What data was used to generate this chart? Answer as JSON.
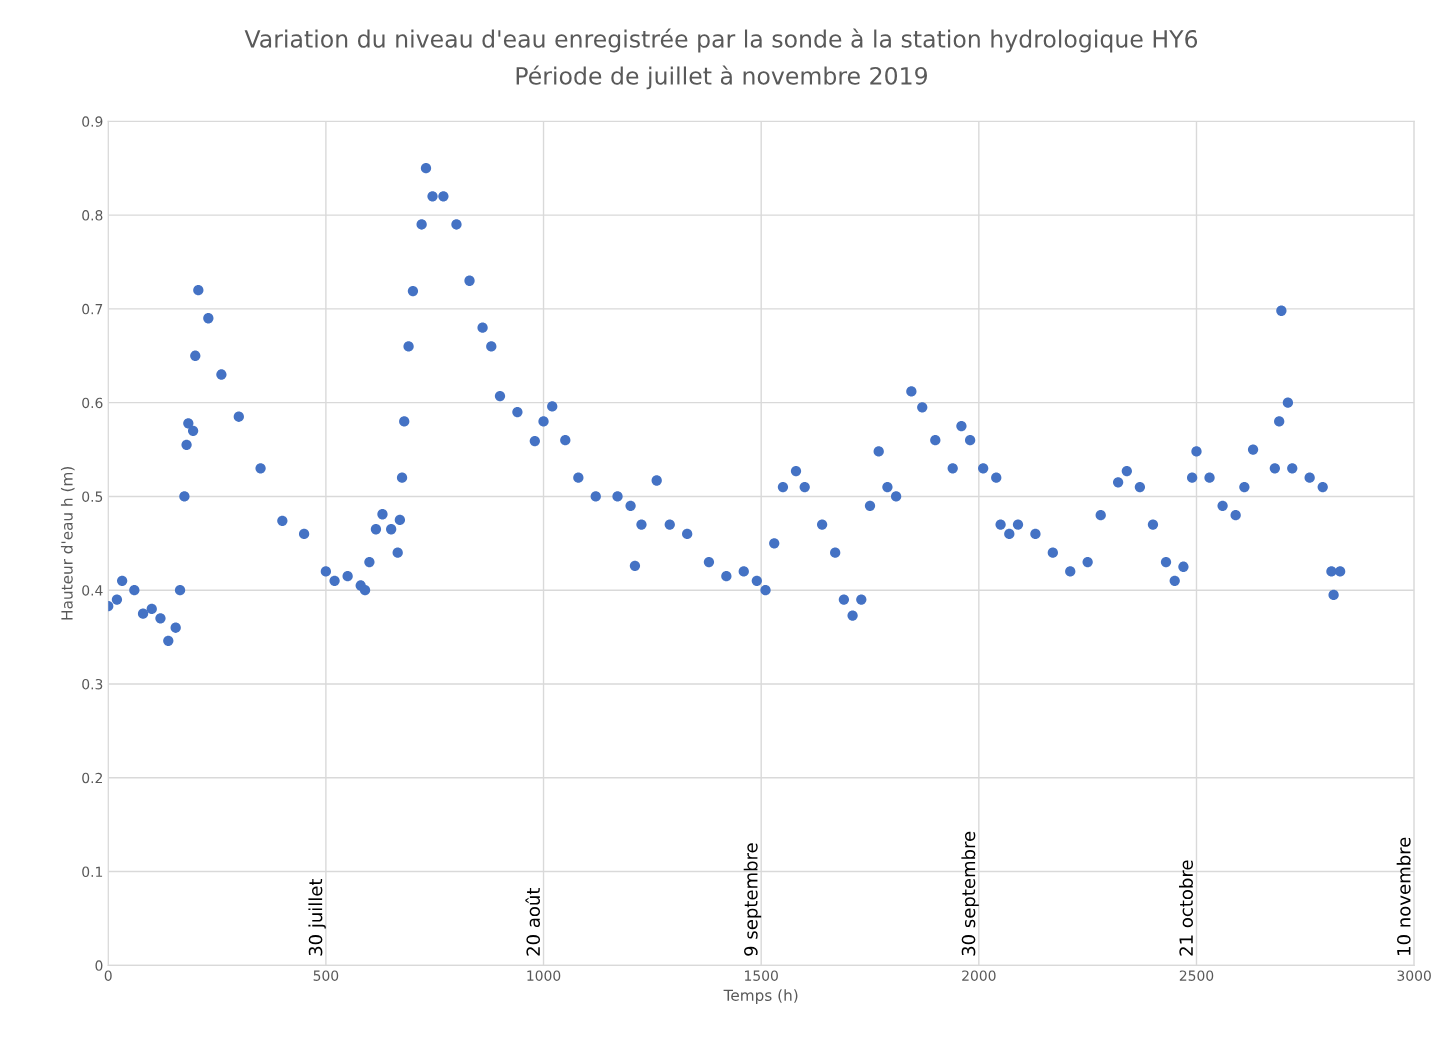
{
  "chart_data": {
    "type": "scatter",
    "title": "Variation du niveau d'eau enregistrée par la sonde à la station hydrologique HY6",
    "subtitle": "Période de juillet à novembre 2019",
    "xlabel": "Temps (h)",
    "ylabel": "Hauteur d'eau h (m)",
    "x": [
      0,
      20,
      32,
      60,
      80,
      100,
      120,
      138,
      155,
      165,
      175,
      180,
      184,
      195,
      200,
      207,
      230,
      260,
      300,
      350,
      400,
      450,
      500,
      520,
      550,
      580,
      590,
      600,
      615,
      630,
      650,
      665,
      670,
      675,
      680,
      690,
      700,
      720,
      730,
      745,
      770,
      800,
      830,
      860,
      880,
      900,
      940,
      980,
      1000,
      1020,
      1050,
      1080,
      1120,
      1170,
      1200,
      1210,
      1225,
      1260,
      1290,
      1330,
      1380,
      1420,
      1460,
      1490,
      1510,
      1530,
      1550,
      1580,
      1600,
      1640,
      1670,
      1690,
      1710,
      1730,
      1750,
      1770,
      1790,
      1810,
      1845,
      1870,
      1900,
      1940,
      1960,
      1980,
      2010,
      2040,
      2050,
      2070,
      2090,
      2130,
      2170,
      2210,
      2250,
      2280,
      2320,
      2340,
      2370,
      2400,
      2430,
      2450,
      2470,
      2490,
      2500,
      2530,
      2560,
      2590,
      2610,
      2630,
      2680,
      2690,
      2695,
      2710,
      2720,
      2760,
      2790,
      2810,
      2815,
      2830
    ],
    "series": [
      {
        "color": "#4472c4",
        "values": [
          0.383,
          0.39,
          0.41,
          0.4,
          0.375,
          0.38,
          0.37,
          0.346,
          0.36,
          0.4,
          0.5,
          0.555,
          0.578,
          0.57,
          0.65,
          0.72,
          0.69,
          0.63,
          0.585,
          0.53,
          0.474,
          0.46,
          0.42,
          0.41,
          0.415,
          0.405,
          0.4,
          0.43,
          0.465,
          0.481,
          0.465,
          0.44,
          0.475,
          0.52,
          0.58,
          0.66,
          0.719,
          0.79,
          0.85,
          0.82,
          0.82,
          0.79,
          0.73,
          0.68,
          0.66,
          0.607,
          0.59,
          0.559,
          0.58,
          0.596,
          0.56,
          0.52,
          0.5,
          0.5,
          0.49,
          0.426,
          0.47,
          0.517,
          0.47,
          0.46,
          0.43,
          0.415,
          0.42,
          0.41,
          0.4,
          0.45,
          0.51,
          0.527,
          0.51,
          0.47,
          0.44,
          0.39,
          0.373,
          0.39,
          0.49,
          0.548,
          0.51,
          0.5,
          0.612,
          0.595,
          0.56,
          0.53,
          0.575,
          0.56,
          0.53,
          0.52,
          0.47,
          0.46,
          0.47,
          0.46,
          0.44,
          0.42,
          0.43,
          0.48,
          0.515,
          0.527,
          0.51,
          0.47,
          0.43,
          0.41,
          0.425,
          0.52,
          0.548,
          0.52,
          0.49,
          0.48,
          0.51,
          0.55,
          0.53,
          0.58,
          0.698,
          0.6,
          0.53,
          0.52,
          0.51,
          0.42,
          0.395,
          0.42
        ]
      }
    ],
    "marker": "circle",
    "grid": true,
    "xlim": [
      0,
      3000
    ],
    "xticks": [
      0,
      500,
      1000,
      1500,
      2000,
      2500,
      3000
    ],
    "ylim": [
      0,
      0.9
    ],
    "yticks": [
      0,
      0.1,
      0.2,
      0.3,
      0.4,
      0.5,
      0.6,
      0.7,
      0.8,
      0.9
    ],
    "annotations": [
      "30 juillet",
      "20 août",
      "9 septembre",
      "30 septembre",
      "21 octobre",
      "10 novembre"
    ]
  }
}
